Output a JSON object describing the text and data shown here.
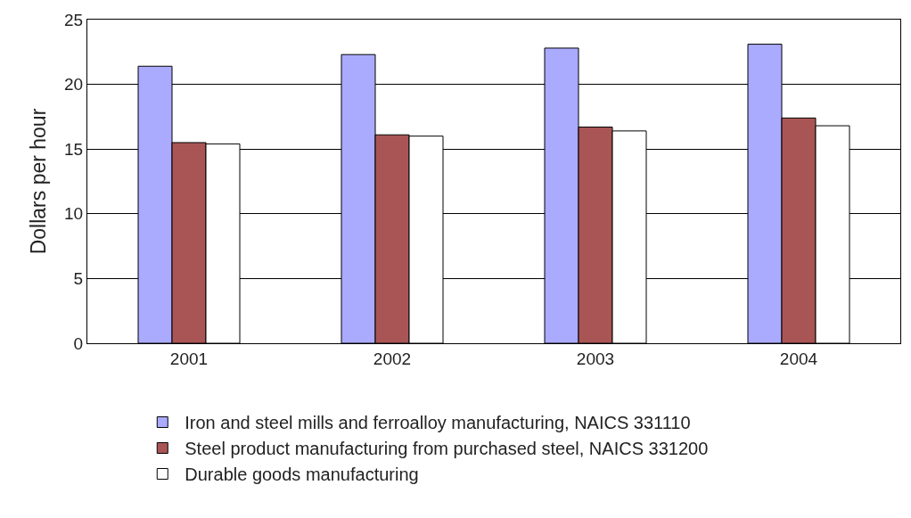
{
  "chart_data": {
    "type": "bar",
    "ylabel": "Dollars per hour",
    "categories": [
      "2001",
      "2002",
      "2003",
      "2004"
    ],
    "series": [
      {
        "name": "Iron and steel mills and ferroalloy manufacturing, NAICS 331110",
        "color": "#aaaaff",
        "values": [
          21.4,
          22.3,
          22.8,
          23.1
        ]
      },
      {
        "name": "Steel product manufacturing from purchased steel, NAICS 331200",
        "color": "#aa5555",
        "values": [
          15.5,
          16.1,
          16.7,
          17.4
        ]
      },
      {
        "name": "Durable goods manufacturing",
        "color": "#ffffff",
        "values": [
          15.4,
          16.0,
          16.4,
          16.8
        ]
      }
    ],
    "ylim": [
      0,
      25
    ],
    "yticks": [
      0,
      5,
      10,
      15,
      20,
      25
    ],
    "grid": "y",
    "legend": "bottom"
  }
}
